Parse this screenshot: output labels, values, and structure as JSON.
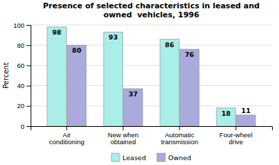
{
  "chart_data": {
    "type": "bar",
    "title": "Presence of selected characteristics in leased and\nowned  vehicles, 1996",
    "categories": [
      "Air\nconditioning",
      "New when\nobtained",
      "Automatic\ntransmission",
      "Four-wheel\ndrive"
    ],
    "series": [
      {
        "name": "Leased",
        "color": "#AAEEE8",
        "values": [
          98,
          93,
          86,
          18
        ]
      },
      {
        "name": "Owned",
        "color": "#AAAADD",
        "values": [
          80,
          37,
          76,
          11
        ]
      }
    ],
    "ylabel": "Percent",
    "ylim": [
      0,
      100
    ],
    "yticks": [
      0,
      20,
      40,
      60,
      80,
      100
    ],
    "grid": true,
    "legend": "bottom",
    "data_labels": true
  }
}
